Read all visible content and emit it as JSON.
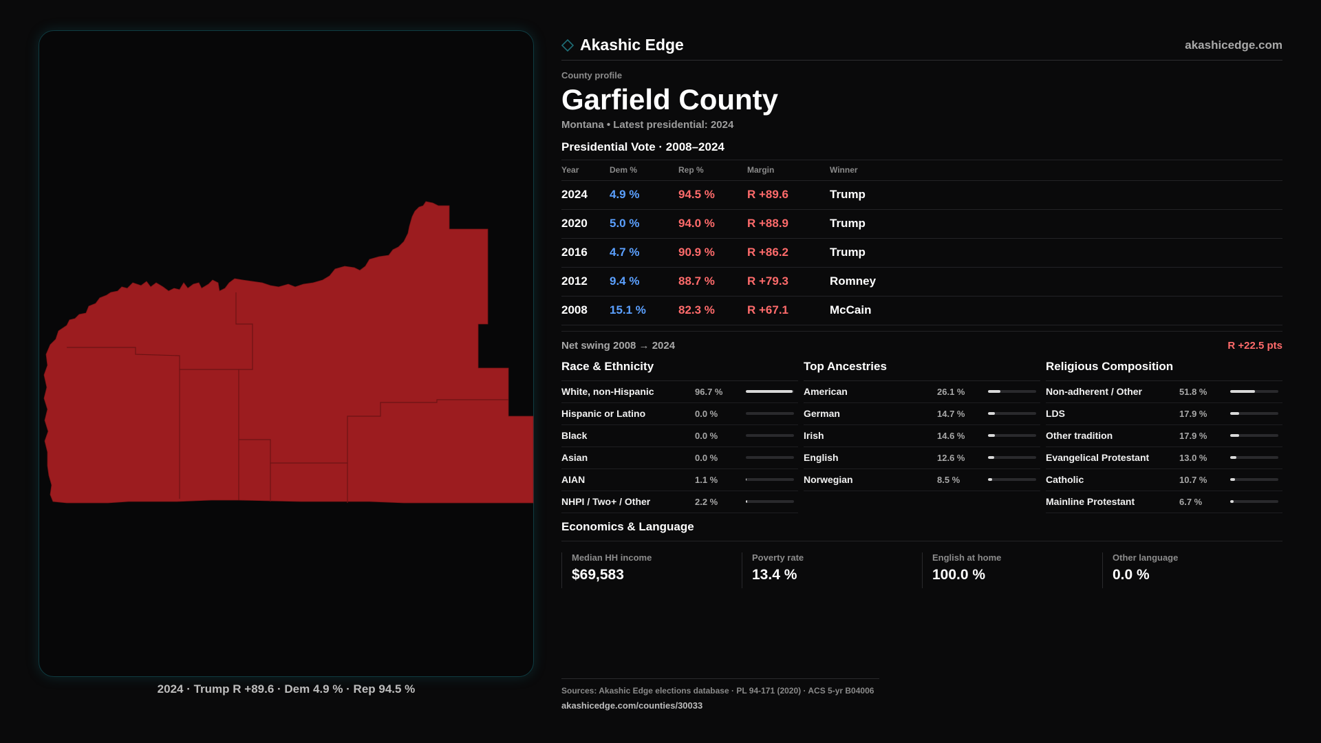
{
  "brand": {
    "name": "Akashic Edge",
    "url": "akashicedge.com",
    "icon": "diamond-outline-icon",
    "accent": "#1f6f78"
  },
  "profile": {
    "eyebrow": "County profile",
    "title": "Garfield County",
    "subtitle": "Montana • Latest presidential: 2024"
  },
  "vote": {
    "heading": "Presidential Vote · 2008–2024",
    "headers": {
      "year": "Year",
      "dem": "Dem %",
      "rep": "Rep %",
      "margin": "Margin",
      "winner": "Winner"
    },
    "rows": [
      {
        "year": "2024",
        "dem": "4.9 %",
        "rep": "94.5 %",
        "margin": "R +89.6",
        "winner": "Trump"
      },
      {
        "year": "2020",
        "dem": "5.0 %",
        "rep": "94.0 %",
        "margin": "R +88.9",
        "winner": "Trump"
      },
      {
        "year": "2016",
        "dem": "4.7 %",
        "rep": "90.9 %",
        "margin": "R +86.2",
        "winner": "Trump"
      },
      {
        "year": "2012",
        "dem": "9.4 %",
        "rep": "88.7 %",
        "margin": "R +79.3",
        "winner": "Romney"
      },
      {
        "year": "2008",
        "dem": "15.1 %",
        "rep": "82.3 %",
        "margin": "R +67.1",
        "winner": "McCain"
      }
    ],
    "swing_label": "Net swing 2008 → 2024",
    "swing_value": "R +22.5 pts"
  },
  "race": {
    "heading": "Race & Ethnicity",
    "items": [
      {
        "label": "White, non-Hispanic",
        "value": "96.7 %",
        "pct": 96.7
      },
      {
        "label": "Hispanic or Latino",
        "value": "0.0 %",
        "pct": 0.0
      },
      {
        "label": "Black",
        "value": "0.0 %",
        "pct": 0.0
      },
      {
        "label": "Asian",
        "value": "0.0 %",
        "pct": 0.0
      },
      {
        "label": "AIAN",
        "value": "1.1 %",
        "pct": 1.1
      },
      {
        "label": "NHPI / Two+ / Other",
        "value": "2.2 %",
        "pct": 2.2
      }
    ]
  },
  "ancestry": {
    "heading": "Top Ancestries",
    "items": [
      {
        "label": "American",
        "value": "26.1 %",
        "pct": 26.1
      },
      {
        "label": "German",
        "value": "14.7 %",
        "pct": 14.7
      },
      {
        "label": "Irish",
        "value": "14.6 %",
        "pct": 14.6
      },
      {
        "label": "English",
        "value": "12.6 %",
        "pct": 12.6
      },
      {
        "label": "Norwegian",
        "value": "8.5 %",
        "pct": 8.5
      }
    ]
  },
  "religion": {
    "heading": "Religious Composition",
    "items": [
      {
        "label": "Non-adherent / Other",
        "value": "51.8 %",
        "pct": 51.8
      },
      {
        "label": "LDS",
        "value": "17.9 %",
        "pct": 17.9
      },
      {
        "label": "Other tradition",
        "value": "17.9 %",
        "pct": 17.9
      },
      {
        "label": "Evangelical Protestant",
        "value": "13.0 %",
        "pct": 13.0
      },
      {
        "label": "Catholic",
        "value": "10.7 %",
        "pct": 10.7
      },
      {
        "label": "Mainline Protestant",
        "value": "6.7 %",
        "pct": 6.7
      }
    ]
  },
  "economics": {
    "heading": "Economics & Language",
    "items": [
      {
        "label": "Median HH income",
        "value": "$69,583"
      },
      {
        "label": "Poverty rate",
        "value": "13.4 %"
      },
      {
        "label": "English at home",
        "value": "100.0 %"
      },
      {
        "label": "Other language",
        "value": "0.0 %"
      }
    ]
  },
  "map": {
    "caption": "2024 · Trump R +89.6 · Dem 4.9 % · Rep 94.5 %",
    "fill_color": "#9c1c1f"
  },
  "sources": {
    "line1": "Sources: Akashic Edge elections database · PL 94-171 (2020) · ACS 5-yr B04006",
    "line2": "akashicedge.com/counties/30033"
  },
  "colors": {
    "dem": "#5ba0ff",
    "rep": "#ff6b6b",
    "bar": "#d9d9d9"
  }
}
